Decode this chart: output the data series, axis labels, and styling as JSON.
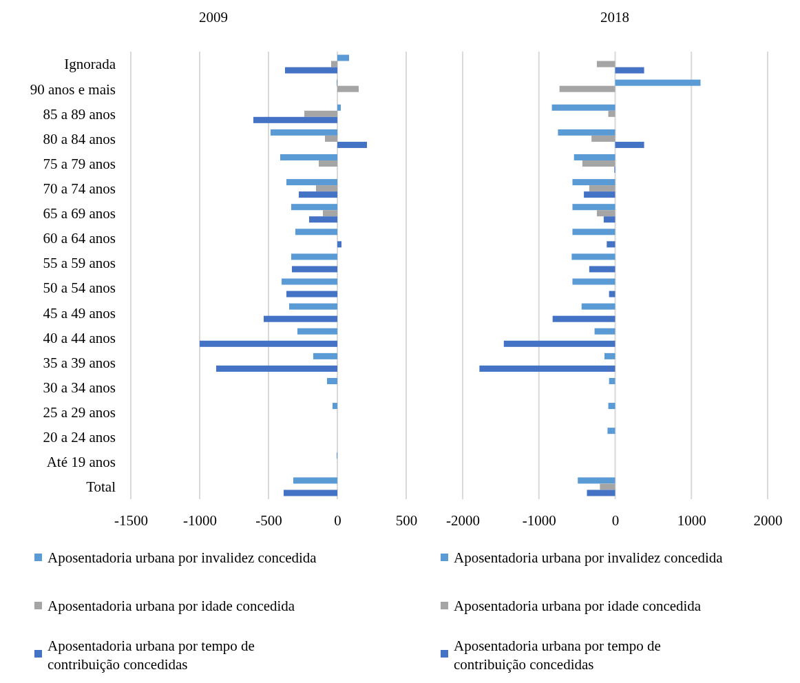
{
  "chart_data": [
    {
      "type": "bar",
      "orientation": "horizontal",
      "title": "2009",
      "categories": [
        "Ignorada",
        "90 anos e mais",
        "85 a 89 anos",
        "80 a 84 anos",
        "75 a 79 anos",
        "70 a 74 anos",
        "65 a 69 anos",
        "60 a 64 anos",
        "55 a 59 anos",
        "50 a 54 anos",
        "45 a 49 anos",
        "40 a 44 anos",
        "35 a 39 anos",
        "30 a 34 anos",
        "25 a 29 anos",
        "20 a 24 anos",
        "Até 19 anos",
        "Total"
      ],
      "series": [
        {
          "name": "Aposentadoria urbana por invalidez concedida",
          "color": "#5b9bd5",
          "values": [
            85,
            -5,
            25,
            -485,
            -415,
            -370,
            -335,
            -305,
            -335,
            -405,
            -350,
            -290,
            -175,
            -75,
            -35,
            null,
            -5,
            -320
          ]
        },
        {
          "name": "Aposentadoria urbana por idade concedida",
          "color": "#a5a5a5",
          "values": [
            -45,
            155,
            -240,
            -90,
            -135,
            -155,
            -105,
            null,
            null,
            null,
            null,
            null,
            null,
            null,
            null,
            null,
            null,
            null
          ]
        },
        {
          "name": "Aposentadoria urbana por tempo de contribuição concedidas",
          "color": "#4472c4",
          "values": [
            -380,
            null,
            -610,
            215,
            null,
            -280,
            -205,
            30,
            -330,
            -370,
            -535,
            -1000,
            -880,
            null,
            null,
            null,
            null,
            -390
          ]
        }
      ],
      "xlim": [
        -1500,
        500
      ],
      "xticks": [
        -1500,
        -1000,
        -500,
        0,
        500
      ],
      "grid": "x",
      "legend": "bottom"
    },
    {
      "type": "bar",
      "orientation": "horizontal",
      "title": "2018",
      "categories": [
        null,
        null,
        null,
        null,
        null,
        null,
        null,
        null,
        null,
        null,
        null,
        null,
        null,
        null,
        null,
        null,
        null,
        null
      ],
      "series": [
        {
          "name": "Aposentadoria urbana por invalidez concedida",
          "color": "#5b9bd5",
          "values": [
            null,
            1120,
            -830,
            -750,
            -540,
            -560,
            -560,
            -560,
            -570,
            -560,
            -440,
            -270,
            -140,
            -80,
            -90,
            -100,
            null,
            -490
          ]
        },
        {
          "name": "Aposentadoria urbana por idade concedida",
          "color": "#a5a5a5",
          "values": [
            -240,
            -730,
            -90,
            -310,
            -430,
            -340,
            -240,
            null,
            null,
            null,
            null,
            null,
            null,
            null,
            null,
            null,
            null,
            -200
          ]
        },
        {
          "name": "Aposentadoria urbana por tempo de contribuição concedidas",
          "color": "#4472c4",
          "values": [
            380,
            null,
            null,
            380,
            -10,
            -410,
            -150,
            -110,
            -340,
            -80,
            -820,
            -1460,
            -1780,
            null,
            null,
            null,
            null,
            -370
          ]
        }
      ],
      "xlim": [
        -2000,
        2000
      ],
      "xticks": [
        -2000,
        -1000,
        0,
        1000,
        2000
      ],
      "grid": "x",
      "legend": "bottom",
      "tick_labels": "x"
    }
  ]
}
